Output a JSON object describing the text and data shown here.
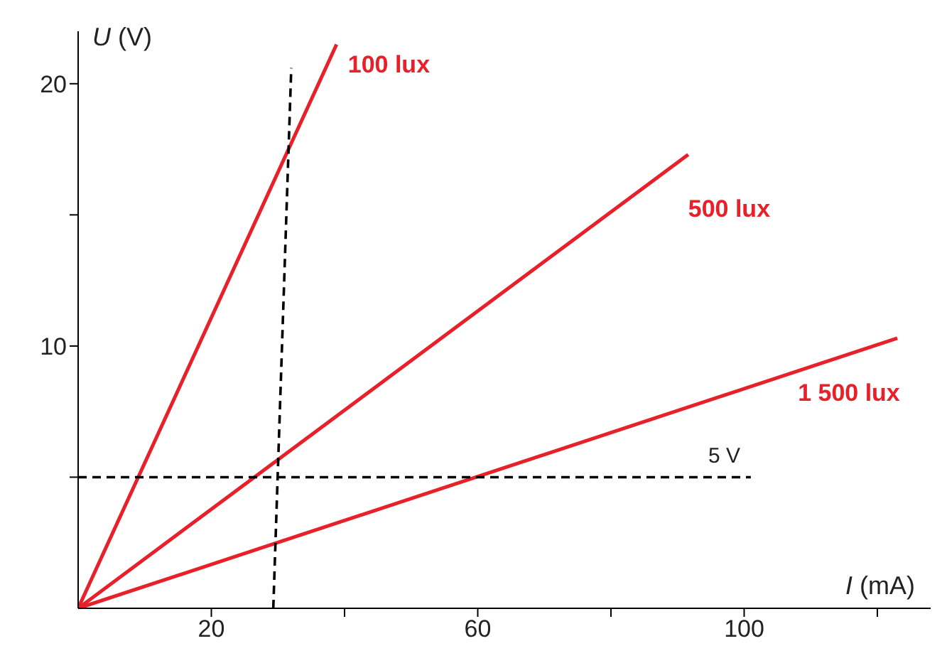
{
  "chart_data": {
    "type": "line",
    "xlabel": "I (mA)",
    "ylabel": "U (V)",
    "xlim": [
      0,
      128
    ],
    "ylim": [
      0,
      22
    ],
    "xticks": [
      {
        "value": 20,
        "label": "20"
      },
      {
        "value": 40,
        "label": null
      },
      {
        "value": 60,
        "label": "60"
      },
      {
        "value": 80,
        "label": null
      },
      {
        "value": 100,
        "label": "100"
      },
      {
        "value": 120,
        "label": null
      }
    ],
    "yticks": [
      {
        "value": 5,
        "label": null
      },
      {
        "value": 10,
        "label": "10"
      },
      {
        "value": 15,
        "label": null
      },
      {
        "value": 20,
        "label": "20"
      }
    ],
    "grid": false,
    "legend": false,
    "marker": "none",
    "series": [
      {
        "name": "100 lux",
        "color": "#e8202a",
        "x": [
          0,
          38.8
        ],
        "values": [
          0,
          21.5
        ]
      },
      {
        "name": "500 lux",
        "color": "#e8202a",
        "x": [
          0,
          91.6
        ],
        "values": [
          0,
          17.3
        ]
      },
      {
        "name": "1 500 lux",
        "color": "#e8202a",
        "x": [
          0,
          123
        ],
        "values": [
          0,
          10.3
        ]
      },
      {
        "name": "5 V",
        "color": "#000000",
        "x": [
          0,
          101
        ],
        "values": [
          5,
          5
        ],
        "line_style": "dashed"
      },
      {
        "color": "#000000",
        "x": [
          29.3,
          32
        ],
        "values": [
          0,
          20.6
        ],
        "line_style": "dashed"
      }
    ]
  }
}
